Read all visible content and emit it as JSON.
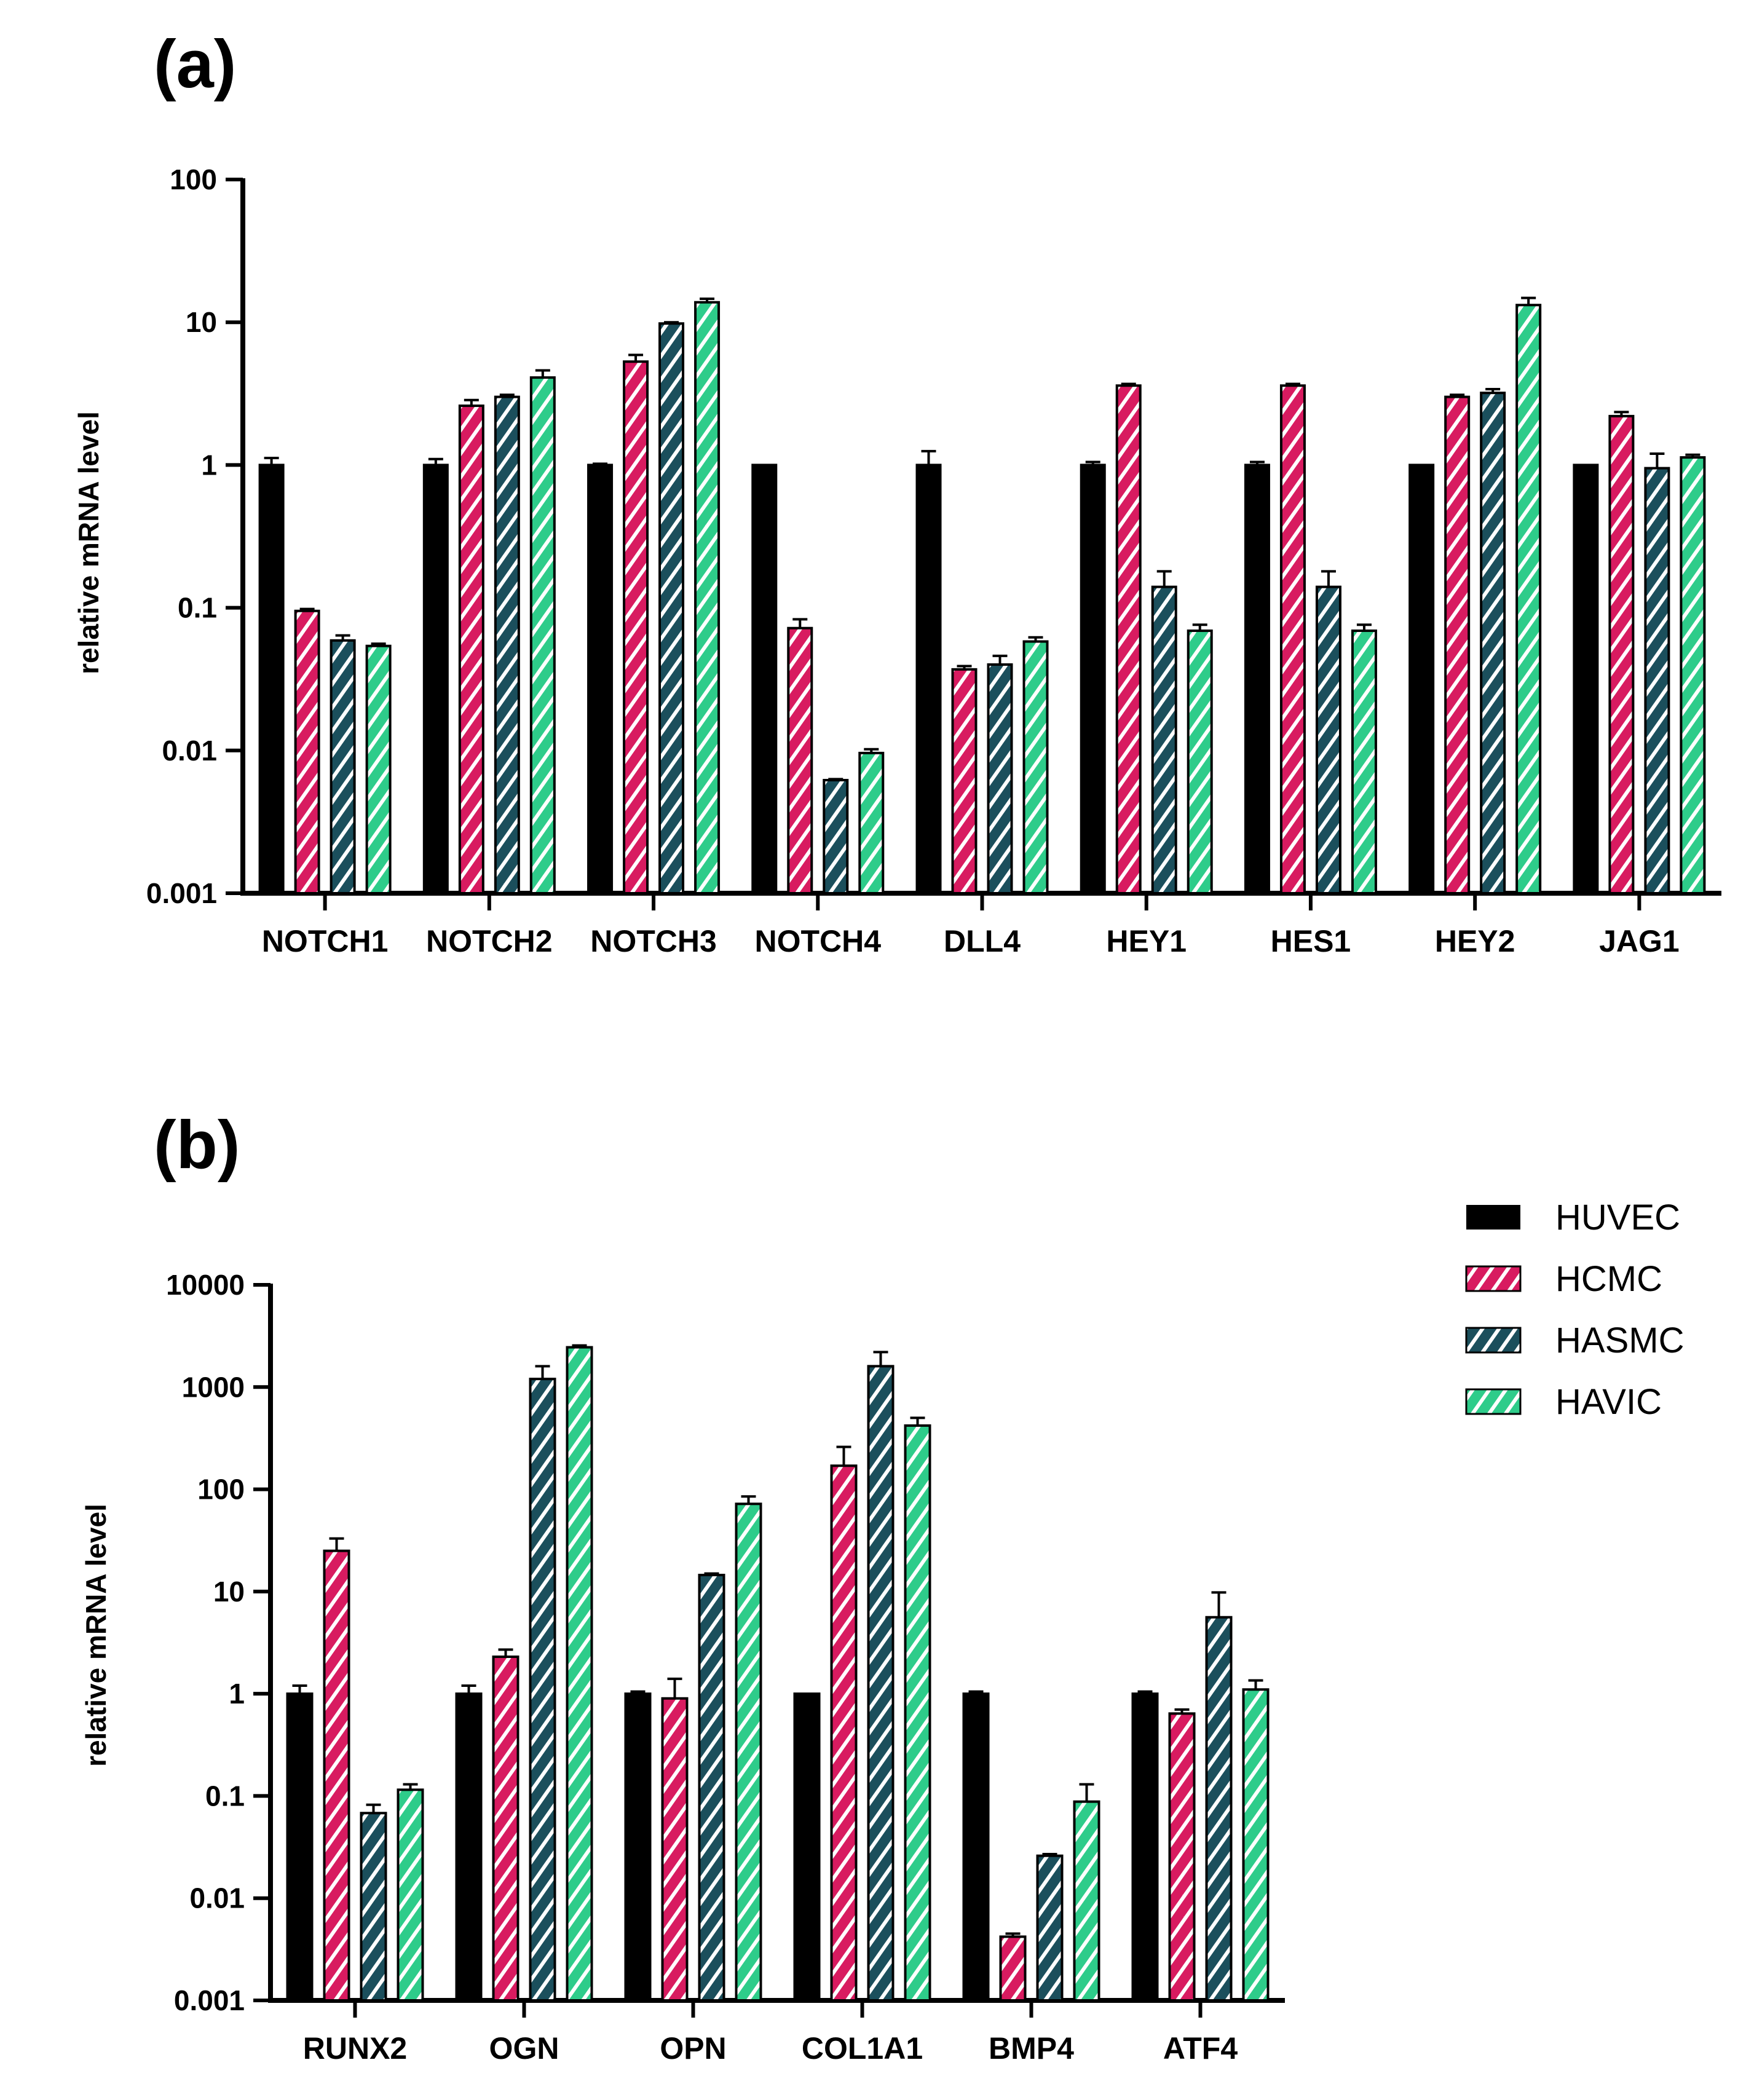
{
  "series_styles": [
    {
      "name": "HUVEC",
      "color": "#000000",
      "pattern": "solid"
    },
    {
      "name": "HCMC",
      "color": "#d81b60",
      "pattern": "hatch"
    },
    {
      "name": "HASMC",
      "color": "#1b4f5c",
      "pattern": "hatch"
    },
    {
      "name": "HAVIC",
      "color": "#2ecc8a",
      "pattern": "hatch"
    }
  ],
  "chart_data": [
    {
      "type": "bar",
      "panel": "(a)",
      "yscale": "log",
      "ylabel": "relative mRNA level",
      "ylim": [
        0.001,
        100
      ],
      "yticks": [
        "0.001",
        "0.01",
        "0.1",
        "1",
        "10",
        "100"
      ],
      "categories": [
        "NOTCH1",
        "NOTCH2",
        "NOTCH3",
        "NOTCH4",
        "DLL4",
        "HEY1",
        "HES1",
        "HEY2",
        "JAG1"
      ],
      "series": [
        {
          "name": "HUVEC",
          "values": [
            1,
            1,
            1,
            1,
            1,
            1,
            1,
            1,
            1
          ],
          "errors": [
            1.12,
            1.1,
            1.02,
            1.0,
            1.25,
            1.05,
            1.05,
            1.0,
            1.0
          ]
        },
        {
          "name": "HCMC",
          "values": [
            0.095,
            2.6,
            5.3,
            0.072,
            0.037,
            3.6,
            3.6,
            3.0,
            2.2
          ],
          "errors": [
            0.098,
            2.85,
            5.9,
            0.083,
            0.039,
            3.7,
            3.7,
            3.1,
            2.35
          ]
        },
        {
          "name": "HASMC",
          "values": [
            0.059,
            3.0,
            9.8,
            0.0062,
            0.04,
            0.14,
            0.14,
            3.2,
            0.95
          ],
          "errors": [
            0.064,
            3.1,
            10.0,
            0.0063,
            0.046,
            0.18,
            0.18,
            3.4,
            1.2
          ]
        },
        {
          "name": "HAVIC",
          "values": [
            0.054,
            4.1,
            13.8,
            0.0096,
            0.058,
            0.069,
            0.069,
            13.2,
            1.13
          ],
          "errors": [
            0.056,
            4.6,
            14.6,
            0.0102,
            0.062,
            0.076,
            0.076,
            14.8,
            1.18
          ]
        }
      ]
    },
    {
      "type": "bar",
      "panel": "(b)",
      "yscale": "log",
      "ylabel": "relative mRNA level",
      "ylim": [
        0.001,
        10000
      ],
      "yticks": [
        "0.001",
        "0.01",
        "0.1",
        "1",
        "10",
        "100",
        "1000",
        "10000"
      ],
      "categories": [
        "RUNX2",
        "OGN",
        "OPN",
        "COL1A1",
        "BMP4",
        "ATF4"
      ],
      "legend_position": "top-right",
      "series": [
        {
          "name": "HUVEC",
          "values": [
            1,
            1,
            1,
            1,
            1,
            1
          ],
          "errors": [
            1.2,
            1.2,
            1.05,
            1.0,
            1.05,
            1.05
          ]
        },
        {
          "name": "HCMC",
          "values": [
            25,
            2.3,
            0.9,
            170,
            0.0042,
            0.64
          ],
          "errors": [
            33,
            2.7,
            1.4,
            260,
            0.0045,
            0.7
          ]
        },
        {
          "name": "HASMC",
          "values": [
            0.068,
            1200,
            14.5,
            1600,
            0.026,
            5.6
          ],
          "errors": [
            0.082,
            1600,
            15.0,
            2200,
            0.027,
            9.8
          ]
        },
        {
          "name": "HAVIC",
          "values": [
            0.115,
            2450,
            72,
            420,
            0.088,
            1.1
          ],
          "errors": [
            0.13,
            2550,
            85,
            500,
            0.13,
            1.35
          ]
        }
      ]
    }
  ]
}
